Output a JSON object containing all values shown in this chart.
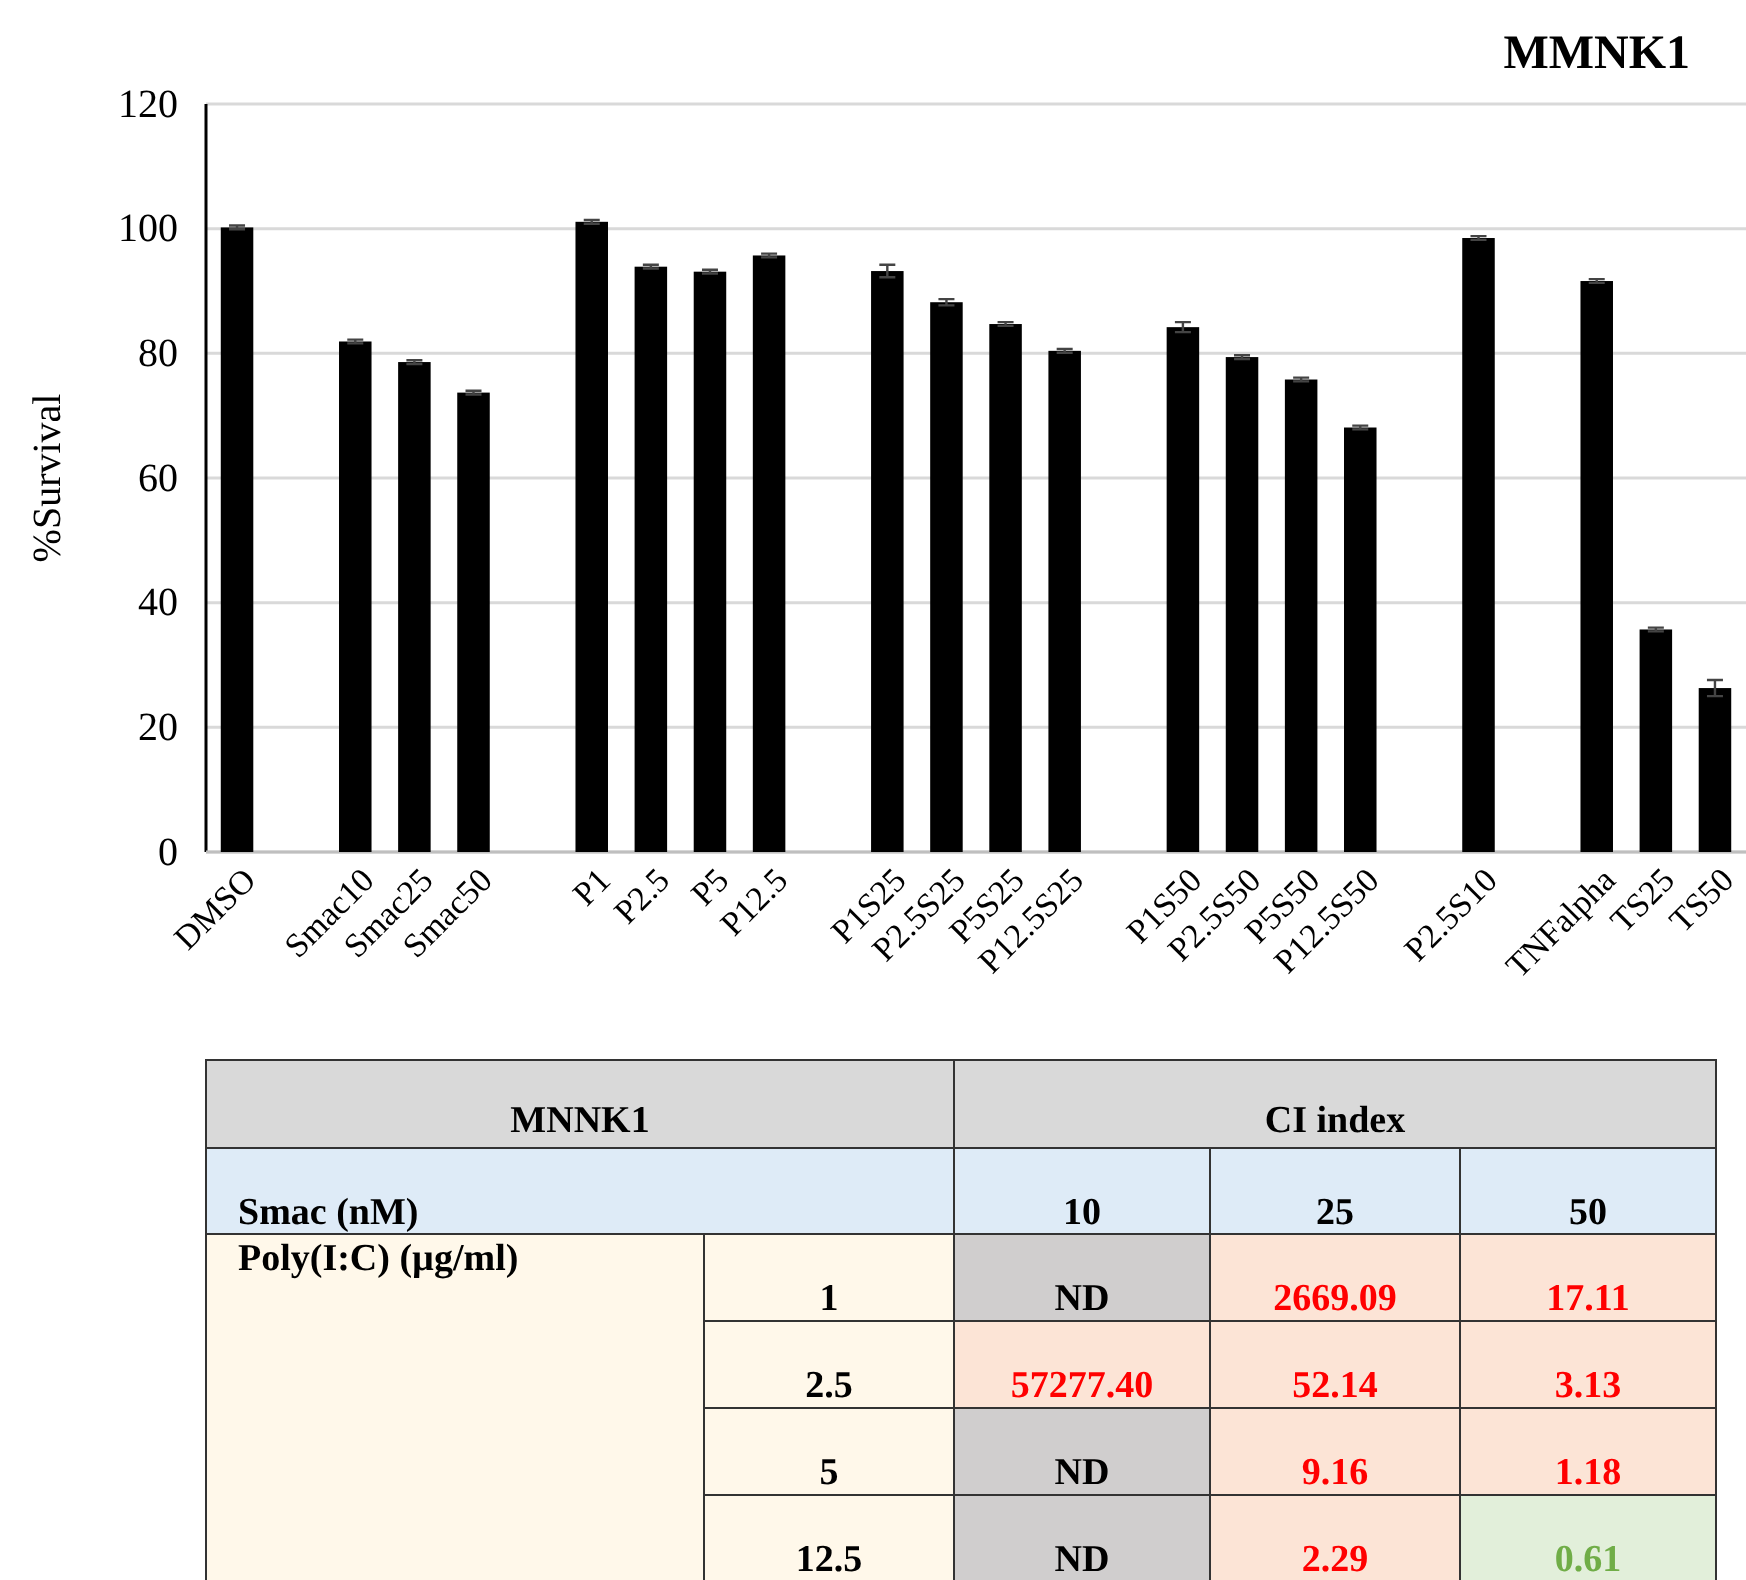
{
  "chart_data": [
    {
      "type": "bar",
      "title": "MMNK1",
      "ylabel": "%Survival",
      "categories": [
        "DMSO",
        null,
        "Smac10",
        "Smac25",
        "Smac50",
        null,
        "P1",
        "P2.5",
        "P5",
        "P12.5",
        null,
        "P1S25",
        "P2.5S25",
        "P5S25",
        "P12.5S25",
        null,
        "P1S50",
        "P2.5S50",
        "P5S50",
        "P12.5S50",
        null,
        "P2.5S10",
        null,
        "TNFalpha",
        "TS25",
        "TS50"
      ],
      "values": [
        100.2,
        null,
        81.9,
        78.6,
        73.7,
        null,
        101.1,
        93.9,
        93.1,
        95.7,
        null,
        93.2,
        88.2,
        84.7,
        80.4,
        null,
        84.2,
        79.4,
        75.8,
        68.1,
        null,
        98.5,
        null,
        91.6,
        35.7,
        26.3
      ],
      "errors": [
        0.3,
        null,
        0.3,
        0.3,
        0.3,
        null,
        0.3,
        0.3,
        0.3,
        0.3,
        null,
        1.0,
        0.5,
        0.3,
        0.3,
        null,
        0.8,
        0.3,
        0.3,
        0.3,
        null,
        0.3,
        null,
        0.3,
        0.3,
        1.3
      ],
      "color": "#000000",
      "ylim": [
        0,
        120
      ],
      "yticks": [
        0,
        20,
        40,
        60,
        80,
        100,
        120
      ],
      "grid": "y"
    },
    {
      "type": "heatmap",
      "title": "MNNK1",
      "subtitle": "CI index",
      "annotations": [
        "Smac (nM)"
      ],
      "ylabel": "Poly(I:C) (µg/ml)",
      "categories": [
        "10",
        "25",
        "50"
      ],
      "y_categories": [
        "1",
        "2.5",
        "5",
        "12.5"
      ],
      "cells": [
        [
          null,
          2669.09,
          17.11
        ],
        [
          57277.4,
          52.14,
          3.13
        ],
        [
          null,
          9.16,
          1.18
        ],
        [
          null,
          2.29,
          0.61
        ]
      ],
      "cell_labels": [
        [
          "ND",
          "2669.09",
          "17.11"
        ],
        [
          "57277.40",
          "52.14",
          "3.13"
        ],
        [
          "ND",
          "9.16",
          "1.18"
        ],
        [
          "ND",
          "2.29",
          "0.61"
        ]
      ]
    }
  ]
}
